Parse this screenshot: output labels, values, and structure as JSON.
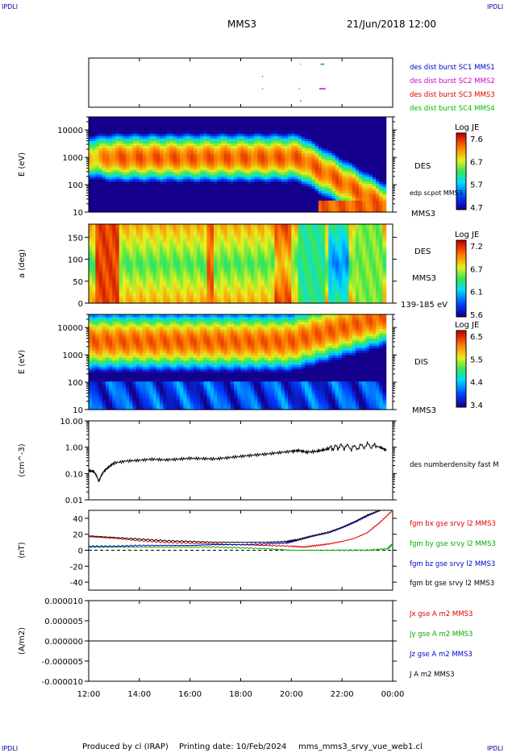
{
  "header": {
    "corner_left_top": "IPDLI",
    "corner_right_top": "IPDLI",
    "corner_left_bottom": "IPDLI",
    "corner_right_bottom": "IPDLI",
    "spacecraft": "MMS3",
    "datetime": "21/Jun/2018 12:00"
  },
  "footer": {
    "producer": "Produced by cl (IRAP)",
    "printing_date": "Printing date: 10/Feb/2024",
    "filename": "mms_mms3_srvy_vue_web1.cl"
  },
  "x_axis": {
    "tick_labels": [
      "12:00",
      "14:00",
      "16:00",
      "18:00",
      "20:00",
      "22:00",
      "00:00"
    ],
    "hours": [
      12,
      14,
      16,
      18,
      20,
      22,
      24
    ]
  },
  "colors": {
    "mms1": "#0000cc",
    "mms2": "#cc00cc",
    "mms3": "#dd0000",
    "mms4": "#00bb00",
    "bx": "#dd0000",
    "by": "#00aa00",
    "bz": "#0000cc",
    "bt": "#000000"
  },
  "chart_data": [
    {
      "type": "scatter",
      "panel": "burst-availability",
      "ylim": [
        0.5,
        4.5
      ],
      "yticks": [
        "1",
        "2",
        "3",
        "4"
      ],
      "labels": [
        {
          "text": "des dist burst SC1 MMS1",
          "color": "#0000cc"
        },
        {
          "text": "des dist burst SC2 MMS2",
          "color": "#cc00cc"
        },
        {
          "text": "des dist burst SC3 MMS3",
          "color": "#dd0000"
        },
        {
          "text": "des dist burst SC4 MMS4",
          "color": "#00bb00"
        }
      ],
      "segments": [
        {
          "sc": 4,
          "t0": 21.15,
          "t1": 21.3
        },
        {
          "sc": 4,
          "t0": 20.35,
          "t1": 20.38
        },
        {
          "sc": 3,
          "t0": 18.85,
          "t1": 18.88
        },
        {
          "sc": 2,
          "t0": 20.3,
          "t1": 20.33
        },
        {
          "sc": 2,
          "t0": 21.1,
          "t1": 21.35
        },
        {
          "sc": 2,
          "t0": 18.85,
          "t1": 18.88
        },
        {
          "sc": 1,
          "t0": 20.35,
          "t1": 20.38
        }
      ]
    },
    {
      "type": "heatmap",
      "panel": "des-energy",
      "ylabel": "E (eV)",
      "yscale": "log",
      "ylim": [
        10,
        30000
      ],
      "ytick_labels": [
        "10",
        "100",
        "1000",
        "10000"
      ],
      "ytick_values": [
        10,
        100,
        1000,
        10000
      ],
      "right_labels": [
        "DES",
        "edp scpot MMS3",
        "MMS3"
      ],
      "colorbar": {
        "title": "Log JE",
        "tick_labels": [
          "7.6",
          "6.7",
          "5.7",
          "4.7"
        ],
        "min": 4.7,
        "max": 7.6
      }
    },
    {
      "type": "heatmap",
      "panel": "des-pitch-angle",
      "ylabel": "a (deg)",
      "ylim": [
        0,
        180
      ],
      "ytick_labels": [
        "0",
        "50",
        "100",
        "150"
      ],
      "ytick_values": [
        0,
        50,
        100,
        150
      ],
      "right_labels": [
        "DES",
        "MMS3",
        "139-185 eV"
      ],
      "colorbar": {
        "title": "Log JE",
        "tick_labels": [
          "7.2",
          "6.7",
          "6.1",
          "5.6"
        ],
        "min": 5.6,
        "max": 7.2
      }
    },
    {
      "type": "heatmap",
      "panel": "dis-energy",
      "ylabel": "E (eV)",
      "yscale": "log",
      "ylim": [
        10,
        30000
      ],
      "ytick_labels": [
        "10",
        "100",
        "1000",
        "10000"
      ],
      "ytick_values": [
        10,
        100,
        1000,
        10000
      ],
      "right_labels": [
        "DIS",
        "MMS3"
      ],
      "colorbar": {
        "title": "Log JE",
        "tick_labels": [
          "6.5",
          "5.5",
          "4.4",
          "3.4"
        ],
        "min": 3.4,
        "max": 6.5
      }
    },
    {
      "type": "line",
      "panel": "density",
      "ylabel": "(cm^-3)",
      "yscale": "log",
      "ylim": [
        0.01,
        10
      ],
      "ytick_labels": [
        "0.01",
        "0.10",
        "1.00",
        "10.00"
      ],
      "ytick_values": [
        0.01,
        0.1,
        1,
        10
      ],
      "series": [
        {
          "name": "des numberdensity fast M",
          "color": "#000000",
          "x": [
            12.0,
            12.2,
            12.4,
            12.6,
            12.8,
            13.0,
            13.5,
            14.0,
            14.5,
            15.0,
            15.5,
            16.0,
            16.5,
            17.0,
            17.5,
            18.0,
            18.5,
            19.0,
            19.5,
            20.0,
            20.3,
            20.6,
            21.0,
            21.3,
            21.6,
            22.0,
            22.5,
            23.0,
            23.5,
            23.75
          ],
          "y": [
            0.13,
            0.12,
            0.05,
            0.12,
            0.18,
            0.25,
            0.3,
            0.32,
            0.35,
            0.33,
            0.35,
            0.38,
            0.37,
            0.36,
            0.4,
            0.45,
            0.5,
            0.55,
            0.62,
            0.7,
            0.75,
            0.65,
            0.7,
            0.8,
            0.95,
            1.1,
            0.95,
            1.2,
            1.0,
            0.75
          ]
        }
      ]
    },
    {
      "type": "line",
      "panel": "magnetic-field",
      "ylabel": "(nT)",
      "ylim": [
        -50,
        50
      ],
      "ytick_labels": [
        "-40",
        "-20",
        "0",
        "20",
        "40"
      ],
      "ytick_values": [
        -40,
        -20,
        0,
        20,
        40
      ],
      "series": [
        {
          "name": "fgm bx gse srvy l2 MMS3",
          "color": "#dd0000",
          "x": [
            12.0,
            13.0,
            14.0,
            15.0,
            16.0,
            17.0,
            18.0,
            19.0,
            20.0,
            20.5,
            21.0,
            21.5,
            22.0,
            22.5,
            23.0,
            23.5,
            24.0
          ],
          "y": [
            17,
            15,
            12,
            10,
            9,
            8,
            7,
            6,
            5,
            4,
            6,
            8,
            11,
            15,
            22,
            35,
            50
          ]
        },
        {
          "name": "fgm by gse srvy l2 MMS3",
          "color": "#00aa00",
          "x": [
            12.0,
            13.0,
            14.0,
            15.0,
            16.0,
            17.0,
            18.0,
            19.0,
            20.0,
            21.0,
            22.0,
            23.0,
            23.8,
            24.0
          ],
          "y": [
            4,
            4,
            4,
            4,
            4,
            4,
            3,
            2,
            0,
            0,
            0,
            0,
            2,
            8
          ]
        },
        {
          "name": "fgm bz gse srvy l2 MMS3",
          "color": "#0000cc",
          "x": [
            12.0,
            13.0,
            14.0,
            15.0,
            16.0,
            17.0,
            18.0,
            19.0,
            19.8,
            20.2,
            20.8,
            21.5,
            22.0,
            22.5,
            23.0,
            23.5
          ],
          "y": [
            5,
            5,
            6,
            6,
            6,
            7,
            7,
            8,
            9,
            12,
            17,
            22,
            28,
            35,
            43,
            50
          ]
        },
        {
          "name": "fgm bt gse srvy l2 MMS3",
          "color": "#000000",
          "x": [
            12.0,
            13.0,
            14.0,
            15.0,
            16.0,
            17.0,
            18.0,
            19.0,
            19.8,
            20.2,
            20.8,
            21.5,
            22.0,
            22.5,
            23.0,
            23.5
          ],
          "y": [
            18,
            16,
            14,
            12,
            11,
            10,
            10,
            10,
            11,
            13,
            18,
            23,
            29,
            36,
            44,
            50
          ]
        }
      ]
    },
    {
      "type": "line",
      "panel": "current-density",
      "ylabel": "(A/m2)",
      "ylim": [
        -1e-05,
        1e-05
      ],
      "ytick_labels": [
        "-0.000010",
        "-0.000005",
        "0.000000",
        "0.000005",
        "0.000010"
      ],
      "ytick_values": [
        -1e-05,
        -5e-06,
        0,
        5e-06,
        1e-05
      ],
      "series": [
        {
          "name": "Jx gse A m2 MMS3",
          "color": "#dd0000",
          "x": [
            12,
            24
          ],
          "y": [
            0,
            0
          ]
        },
        {
          "name": "Jy gse A m2 MMS3",
          "color": "#00aa00",
          "x": [
            12,
            24
          ],
          "y": [
            0,
            0
          ]
        },
        {
          "name": "Jz gse A m2 MMS3",
          "color": "#0000cc",
          "x": [
            12,
            24
          ],
          "y": [
            0,
            0
          ]
        },
        {
          "name": "J A m2 MMS3",
          "color": "#000000",
          "x": [
            12,
            24
          ],
          "y": [
            0,
            0
          ]
        }
      ]
    }
  ]
}
